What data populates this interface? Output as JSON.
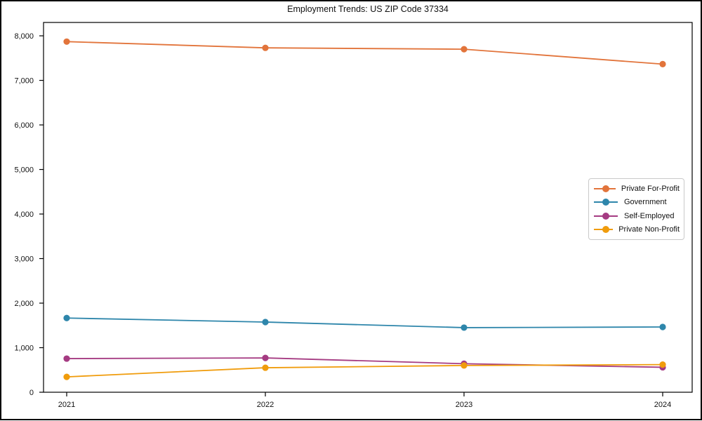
{
  "figure": {
    "background": "#ffffff",
    "outer_border_color": "#000000",
    "axis_color": "#000000"
  },
  "chart_data": {
    "type": "line",
    "title": "Employment Trends: US ZIP Code 37334",
    "xlabel": "",
    "ylabel": "",
    "categories": [
      "2021",
      "2022",
      "2023",
      "2024"
    ],
    "series": [
      {
        "name": "Private For-Profit",
        "color": "#e2743b",
        "values": [
          7870,
          7730,
          7700,
          7365
        ]
      },
      {
        "name": "Government",
        "color": "#2e86ab",
        "values": [
          1665,
          1575,
          1450,
          1465
        ]
      },
      {
        "name": "Self-Employed",
        "color": "#a53b82",
        "values": [
          755,
          770,
          640,
          560
        ]
      },
      {
        "name": "Private Non-Profit",
        "color": "#f09c0c",
        "values": [
          345,
          550,
          600,
          620
        ]
      }
    ],
    "ylim": [
      0,
      8300
    ],
    "ytick_values": [
      0,
      1000,
      2000,
      3000,
      4000,
      5000,
      6000,
      7000,
      8000
    ],
    "ytick_labels": [
      "0",
      "1,000",
      "2,000",
      "3,000",
      "4,000",
      "5,000",
      "6,000",
      "7,000",
      "8,000"
    ],
    "grid": false,
    "marker": "circle",
    "legend": {
      "position": "center-right",
      "background": "#ffffff",
      "border_color": "#c9c9c9"
    }
  }
}
